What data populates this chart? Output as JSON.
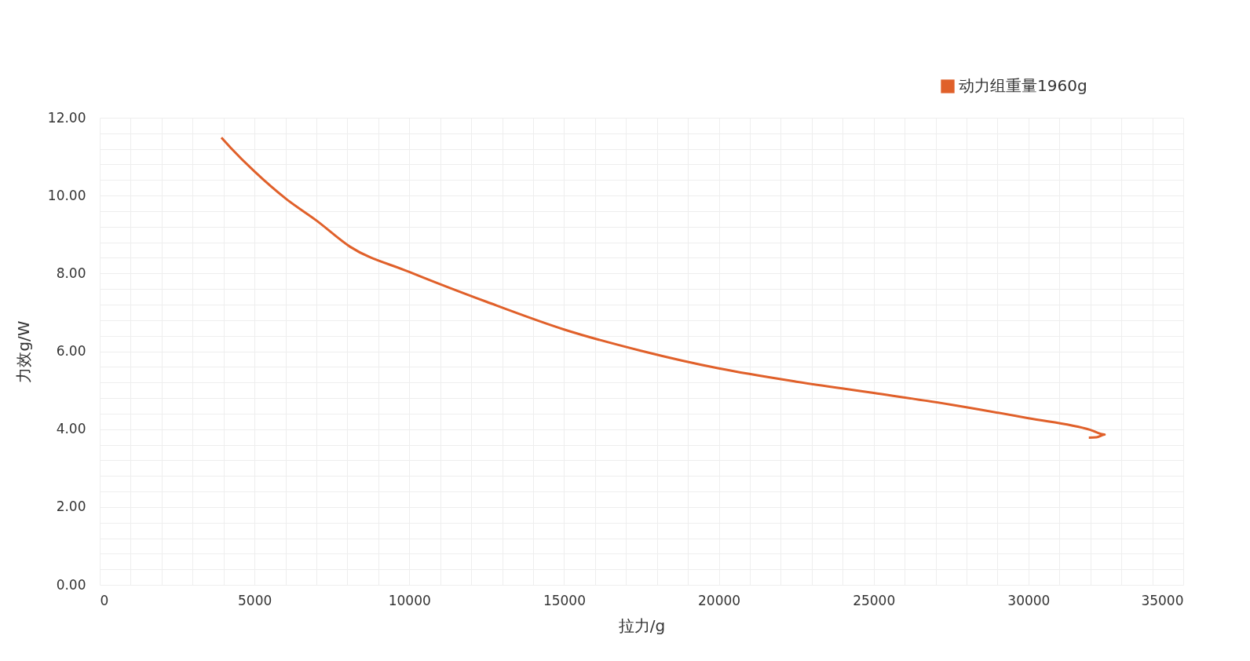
{
  "chart_data": {
    "type": "line",
    "xlabel": "拉力/g",
    "ylabel": "力效g/W",
    "legend": "top right",
    "grid": true,
    "line_style": "solid",
    "marker": "none",
    "xlim": [
      0,
      35000
    ],
    "ylim": [
      0,
      12
    ],
    "xticks": [
      0,
      {
        "value": 1000,
        "label": null
      },
      {
        "value": 2000,
        "label": null
      },
      {
        "value": 3000,
        "label": null
      },
      {
        "value": 4000,
        "label": null
      },
      5000,
      {
        "value": 6000,
        "label": null
      },
      {
        "value": 7000,
        "label": null
      },
      {
        "value": 8000,
        "label": null
      },
      {
        "value": 9000,
        "label": null
      },
      10000,
      {
        "value": 11000,
        "label": null
      },
      {
        "value": 12000,
        "label": null
      },
      {
        "value": 13000,
        "label": null
      },
      {
        "value": 14000,
        "label": null
      },
      15000,
      {
        "value": 16000,
        "label": null
      },
      {
        "value": 17000,
        "label": null
      },
      {
        "value": 18000,
        "label": null
      },
      {
        "value": 19000,
        "label": null
      },
      20000,
      {
        "value": 21000,
        "label": null
      },
      {
        "value": 22000,
        "label": null
      },
      {
        "value": 23000,
        "label": null
      },
      {
        "value": 24000,
        "label": null
      },
      25000,
      {
        "value": 26000,
        "label": null
      },
      {
        "value": 27000,
        "label": null
      },
      {
        "value": 28000,
        "label": null
      },
      {
        "value": 29000,
        "label": null
      },
      30000,
      {
        "value": 31000,
        "label": null
      },
      {
        "value": 32000,
        "label": null
      },
      {
        "value": 33000,
        "label": null
      },
      {
        "value": 34000,
        "label": null
      },
      35000
    ],
    "yticks": [
      {
        "value": 0,
        "label": "0.00"
      },
      {
        "value": 0.4,
        "label": null
      },
      {
        "value": 0.8,
        "label": null
      },
      {
        "value": 1.2,
        "label": null
      },
      {
        "value": 1.6,
        "label": null
      },
      {
        "value": 2,
        "label": "2.00"
      },
      {
        "value": 2.4,
        "label": null
      },
      {
        "value": 2.8,
        "label": null
      },
      {
        "value": 3.2,
        "label": null
      },
      {
        "value": 3.6,
        "label": null
      },
      {
        "value": 4,
        "label": "4.00"
      },
      {
        "value": 4.4,
        "label": null
      },
      {
        "value": 4.8,
        "label": null
      },
      {
        "value": 5.2,
        "label": null
      },
      {
        "value": 5.6,
        "label": null
      },
      {
        "value": 6,
        "label": "6.00"
      },
      {
        "value": 6.4,
        "label": null
      },
      {
        "value": 6.8,
        "label": null
      },
      {
        "value": 7.2,
        "label": null
      },
      {
        "value": 7.6,
        "label": null
      },
      {
        "value": 8,
        "label": "8.00"
      },
      {
        "value": 8.4,
        "label": null
      },
      {
        "value": 8.8,
        "label": null
      },
      {
        "value": 9.2,
        "label": null
      },
      {
        "value": 9.6,
        "label": null
      },
      {
        "value": 10,
        "label": "10.00"
      },
      {
        "value": 10.4,
        "label": null
      },
      {
        "value": 10.8,
        "label": null
      },
      {
        "value": 11.2,
        "label": null
      },
      {
        "value": 11.6,
        "label": null
      },
      {
        "value": 12,
        "label": "12.00"
      }
    ],
    "series": [
      {
        "name": "动力组重量1960g",
        "color": "#e0602a",
        "x": [
          3930,
          4230,
          5000,
          6030,
          7000,
          8080,
          10000,
          12500,
          15000,
          17500,
          20000,
          22500,
          25000,
          27500,
          30000,
          32000,
          32460,
          32200,
          31950
        ],
        "values": [
          11.49,
          11.23,
          10.62,
          9.91,
          9.36,
          8.69,
          8.04,
          7.27,
          6.56,
          6.01,
          5.56,
          5.22,
          4.93,
          4.63,
          4.28,
          3.98,
          3.86,
          3.79,
          3.78
        ]
      }
    ]
  }
}
